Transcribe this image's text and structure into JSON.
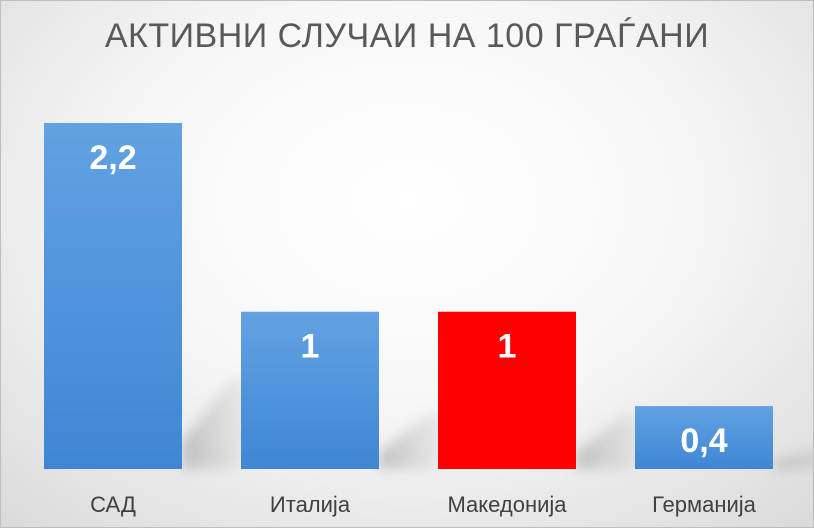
{
  "chart_data": {
    "type": "bar",
    "title": "АКТИВНИ СЛУЧАИ НА 100 ГРАЃАНИ",
    "categories": [
      "САД",
      "Италија",
      "Македонија",
      "Германија"
    ],
    "values": [
      2.2,
      1,
      1,
      0.4
    ],
    "value_labels": [
      "2,2",
      "1",
      "1",
      "0,4"
    ],
    "xlabel": "",
    "ylabel": "",
    "ylim": [
      0,
      2.2
    ],
    "grid": false,
    "legend": "none",
    "colors": {
      "default_bar": "#4a8fd8",
      "default_bar_top": "#5f9fe0",
      "highlight_bar": "#ff0000",
      "highlight_category": "Македонија"
    }
  }
}
